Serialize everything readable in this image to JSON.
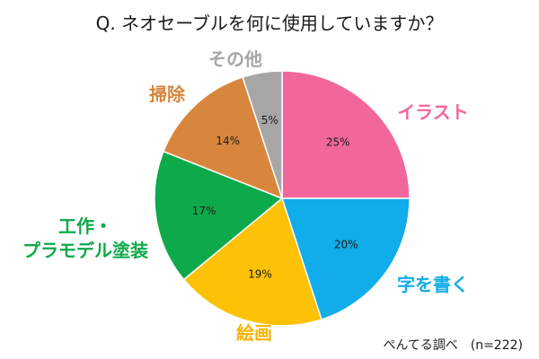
{
  "title": "Q. ネオセーブルを何に使用していますか？",
  "source_note": "ぺんてる調べ　(n=222)",
  "chart_data": {
    "type": "pie",
    "title": "Q. ネオセーブルを何に使用していますか？",
    "start_angle": "12 o'clock",
    "direction": "clockwise",
    "slices": [
      {
        "label": "イラスト",
        "value": 25,
        "value_label": "25%",
        "color": "#f2679b",
        "label_color": "#f2679b"
      },
      {
        "label": "字を書く",
        "value": 20,
        "value_label": "20%",
        "color": "#11acea",
        "label_color": "#11acea"
      },
      {
        "label": "絵画",
        "value": 19,
        "value_label": "19%",
        "color": "#fdc107",
        "label_color": "#f5b400"
      },
      {
        "label": "工作・\nプラモデル塗装",
        "value": 17,
        "value_label": "17%",
        "color": "#0ea94a",
        "label_color": "#0ea94a"
      },
      {
        "label": "掃除",
        "value": 14,
        "value_label": "14%",
        "color": "#d8863d",
        "label_color": "#d8863d"
      },
      {
        "label": "その他",
        "value": 5,
        "value_label": "5%",
        "color": "#a6a6a6",
        "label_color": "#a6a6a6"
      }
    ]
  }
}
